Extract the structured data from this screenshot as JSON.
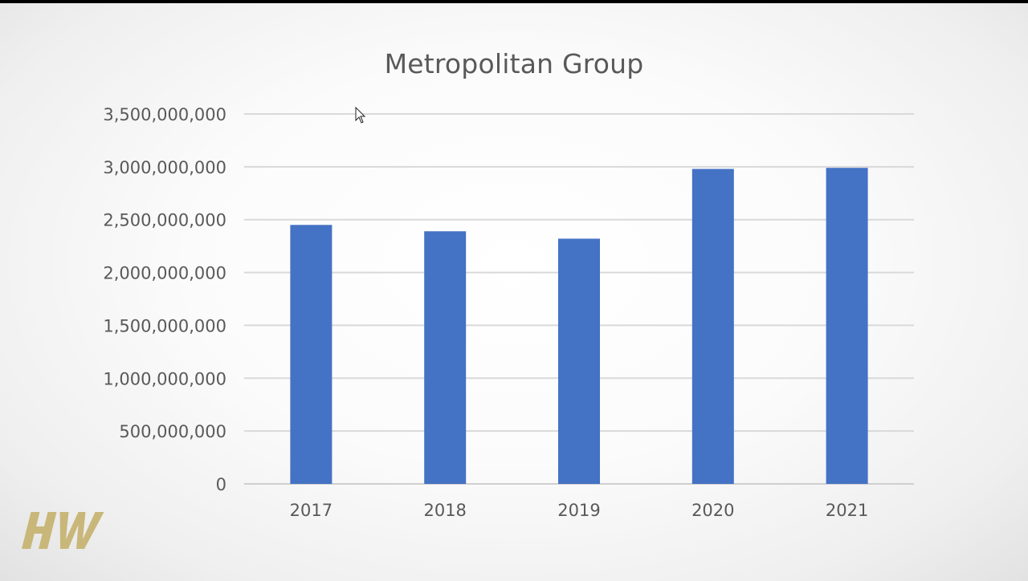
{
  "chart_data": {
    "type": "bar",
    "title": "Metropolitan Group",
    "categories": [
      "2017",
      "2018",
      "2019",
      "2020",
      "2021"
    ],
    "values": [
      2450000000,
      2390000000,
      2320000000,
      2980000000,
      2990000000
    ],
    "ylim": [
      0,
      3500000000
    ],
    "yticks": [
      "0",
      "500,000,000",
      "1,000,000,000",
      "1,500,000,000",
      "2,000,000,000",
      "2,500,000,000",
      "3,000,000,000",
      "3,500,000,000"
    ],
    "xlabel": "",
    "ylabel": "",
    "grid": true,
    "bar_color": "#4472C4"
  },
  "logo": {
    "text": "HW",
    "color": "#C9B77A"
  },
  "cursor": {
    "icon": "arrow-cursor-icon"
  }
}
